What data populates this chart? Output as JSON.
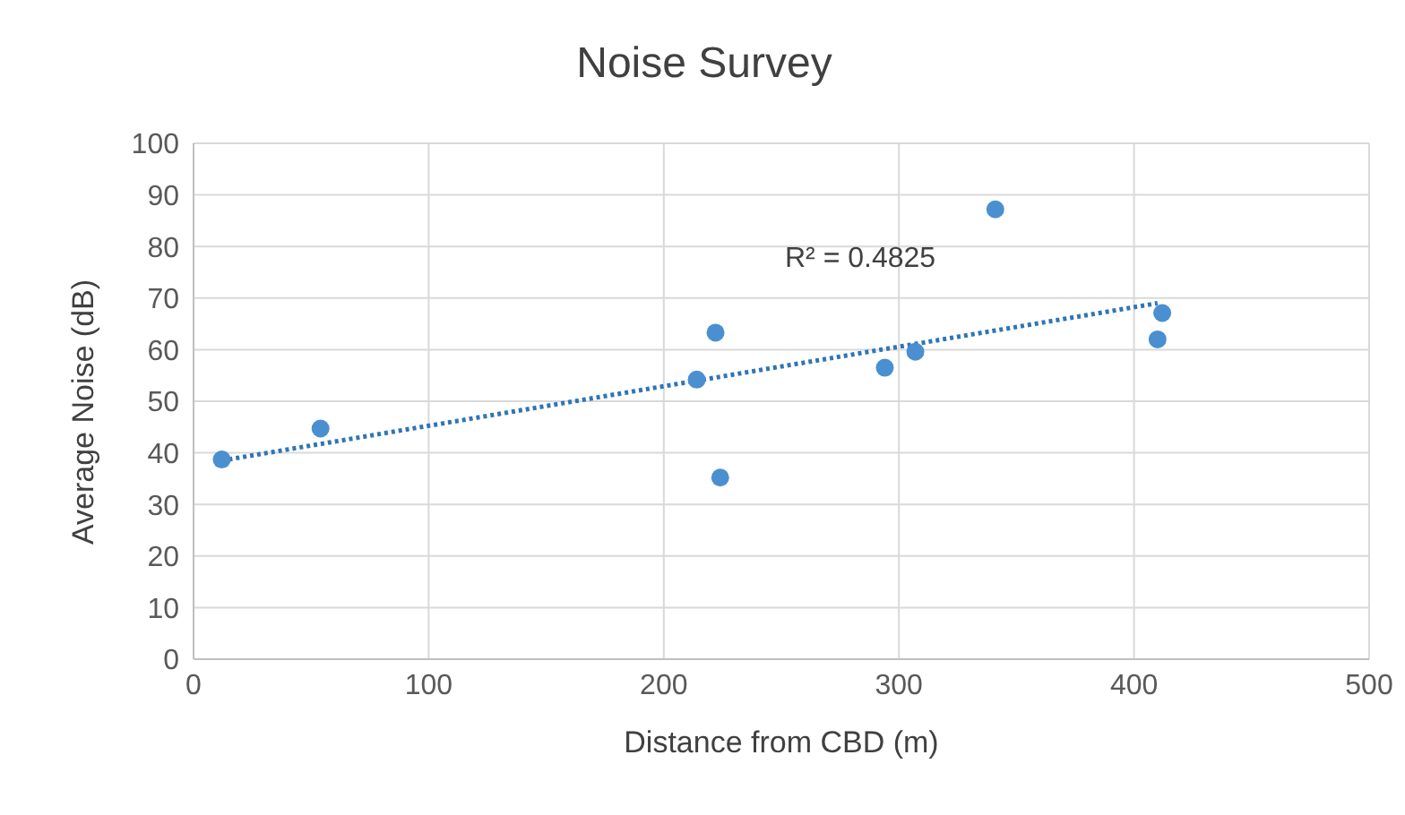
{
  "chart_data": {
    "type": "scatter",
    "title": "Noise Survey",
    "xlabel": "Distance from CBD (m)",
    "ylabel": "Average Noise (dB)",
    "x": [
      12,
      54,
      214,
      222,
      224,
      294,
      307,
      341,
      410,
      412
    ],
    "series": [
      {
        "color": "#4a90d0",
        "values": [
          38.7,
          44.7,
          54.2,
          63.3,
          35.2,
          56.5,
          59.6,
          87.2,
          62,
          67.1
        ]
      },
      {
        "type": "line",
        "color": "#2e75b6",
        "x": [
          12,
          410
        ],
        "values": [
          38.5,
          69
        ],
        "line_style": "dotted",
        "marker": "none"
      }
    ],
    "xlim": [
      0,
      500
    ],
    "xticks": [
      0,
      100,
      200,
      300,
      400,
      500
    ],
    "ylim": [
      0,
      100
    ],
    "yticks": [
      0,
      10,
      20,
      30,
      40,
      50,
      60,
      70,
      80,
      90,
      100
    ],
    "grid": true,
    "marker": "circle",
    "annotations": [
      "R² = 0.4825"
    ]
  }
}
